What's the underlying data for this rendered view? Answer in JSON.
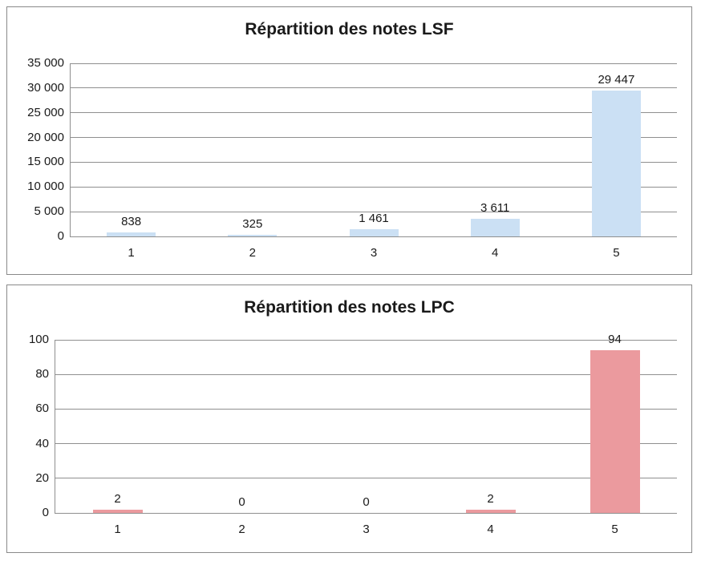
{
  "chart_data": [
    {
      "type": "bar",
      "title": "Répartition des notes LSF",
      "categories": [
        "1",
        "2",
        "3",
        "4",
        "5"
      ],
      "values": [
        838,
        325,
        1461,
        3611,
        29447
      ],
      "value_labels": [
        "838",
        "325",
        "1 461",
        "3 611",
        "29 447"
      ],
      "xlabel": "",
      "ylabel": "",
      "ylim": [
        0,
        35000
      ],
      "y_ticks": [
        0,
        5000,
        10000,
        15000,
        20000,
        25000,
        30000,
        35000
      ],
      "y_tick_labels": [
        "0",
        "5 000",
        "10 000",
        "15 000",
        "20 000",
        "25 000",
        "30 000",
        "35 000"
      ],
      "grid": true,
      "legend": "none",
      "bar_color": "#CBE0F4",
      "grid_color": "#8F8F8F",
      "frame_color": "#8A8A8A",
      "text_color": "#1A1A1A"
    },
    {
      "type": "bar",
      "title": "Répartition des notes LPC",
      "categories": [
        "1",
        "2",
        "3",
        "4",
        "5"
      ],
      "values": [
        2,
        0,
        0,
        2,
        94
      ],
      "value_labels": [
        "2",
        "0",
        "0",
        "2",
        "94"
      ],
      "xlabel": "",
      "ylabel": "",
      "ylim": [
        0,
        100
      ],
      "y_ticks": [
        0,
        20,
        40,
        60,
        80,
        100
      ],
      "y_tick_labels": [
        "0",
        "20",
        "40",
        "60",
        "80",
        "100"
      ],
      "grid": true,
      "legend": "none",
      "bar_color": "#EB9A9E",
      "grid_color": "#8F8F8F",
      "frame_color": "#8A8A8A",
      "text_color": "#1A1A1A"
    }
  ]
}
